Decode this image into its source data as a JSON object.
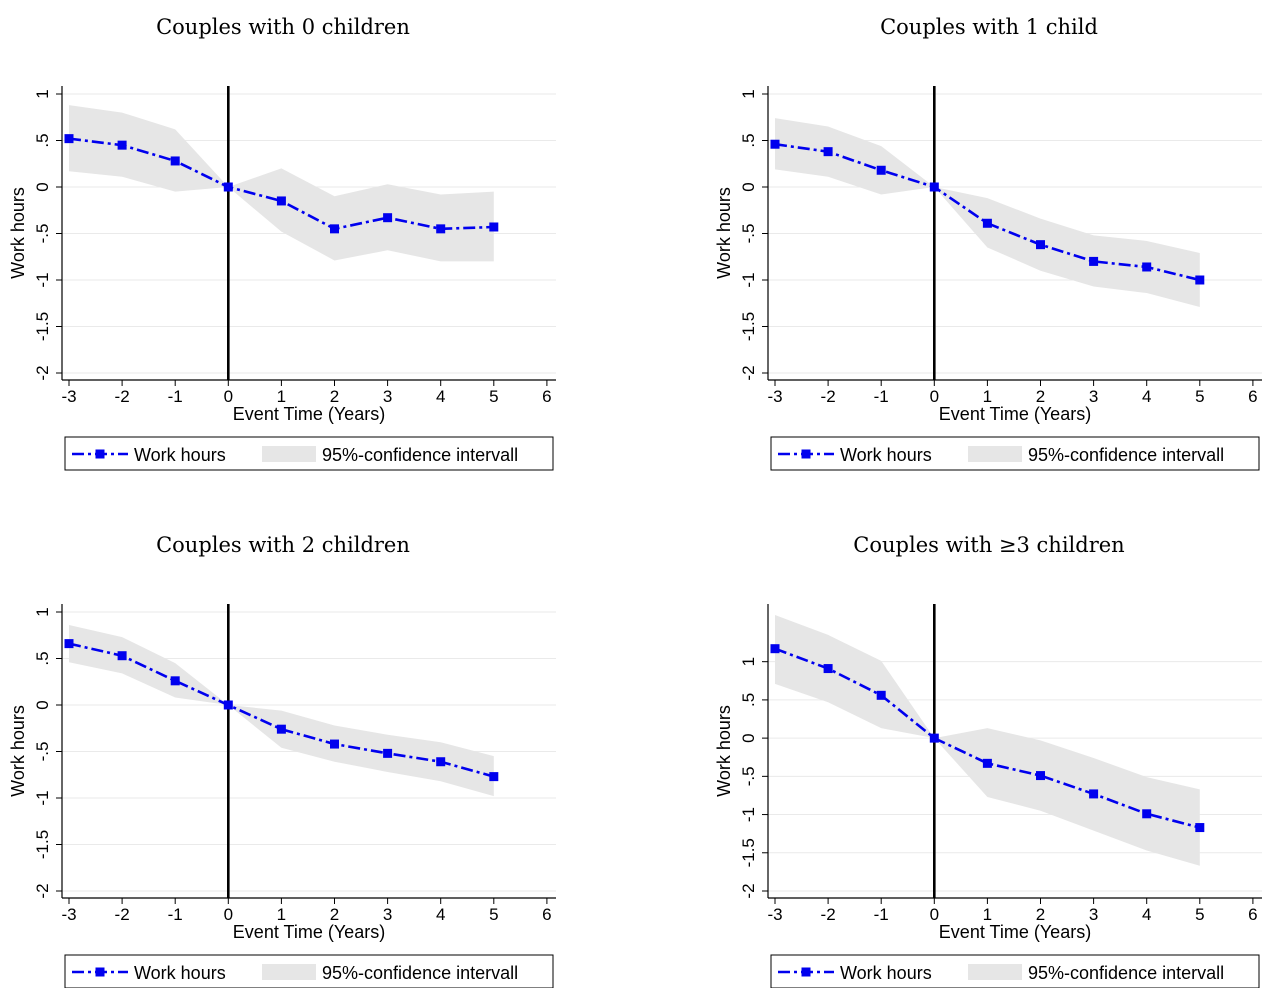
{
  "figure": {
    "legend_labels": {
      "series": "Work hours",
      "band": "95%-confidence intervall"
    }
  },
  "colors": {
    "series": "#0000ee",
    "band": "#e6e6e6",
    "grid": "#eaeaea",
    "event_line": "#000000"
  },
  "chart_data": [
    {
      "type": "line",
      "title": "Couples with 0 children",
      "xlabel": "Event Time (Years)",
      "ylabel": "Work hours",
      "xlim": [
        -3,
        6
      ],
      "ylim": [
        -2,
        1
      ],
      "xticks": [
        -3,
        -2,
        -1,
        0,
        1,
        2,
        3,
        4,
        5,
        6
      ],
      "yticks": [
        -2,
        -1.5,
        -1,
        -0.5,
        0,
        0.5,
        1
      ],
      "ytick_labels": [
        "-2",
        "-1.5",
        "-1",
        "-.5",
        "0",
        ".5",
        "1"
      ],
      "vline_x": 0,
      "legend_position": "bottom",
      "series": [
        {
          "name": "Work hours",
          "x": [
            -3,
            -2,
            -1,
            0,
            1,
            2,
            3,
            4,
            5
          ],
          "values": [
            0.52,
            0.45,
            0.28,
            0.0,
            -0.15,
            -0.45,
            -0.33,
            -0.45,
            -0.43
          ],
          "ci_low": [
            0.17,
            0.11,
            -0.05,
            0.0,
            -0.48,
            -0.79,
            -0.68,
            -0.8,
            -0.8
          ],
          "ci_high": [
            0.88,
            0.8,
            0.62,
            0.0,
            0.2,
            -0.1,
            0.03,
            -0.08,
            -0.05
          ]
        }
      ]
    },
    {
      "type": "line",
      "title": "Couples with 1 child",
      "xlabel": "Event Time (Years)",
      "ylabel": "Work hours",
      "xlim": [
        -3,
        6
      ],
      "ylim": [
        -2,
        1
      ],
      "xticks": [
        -3,
        -2,
        -1,
        0,
        1,
        2,
        3,
        4,
        5,
        6
      ],
      "yticks": [
        -2,
        -1.5,
        -1,
        -0.5,
        0,
        0.5,
        1
      ],
      "ytick_labels": [
        "-2",
        "-1.5",
        "-1",
        "-.5",
        "0",
        ".5",
        "1"
      ],
      "vline_x": 0,
      "legend_position": "bottom",
      "series": [
        {
          "name": "Work hours",
          "x": [
            -3,
            -2,
            -1,
            0,
            1,
            2,
            3,
            4,
            5
          ],
          "values": [
            0.46,
            0.38,
            0.18,
            0.0,
            -0.39,
            -0.62,
            -0.8,
            -0.86,
            -1.0
          ],
          "ci_low": [
            0.19,
            0.11,
            -0.08,
            0.0,
            -0.65,
            -0.9,
            -1.07,
            -1.14,
            -1.29
          ],
          "ci_high": [
            0.74,
            0.65,
            0.44,
            0.0,
            -0.12,
            -0.34,
            -0.52,
            -0.58,
            -0.71
          ]
        }
      ]
    },
    {
      "type": "line",
      "title": "Couples with 2 children",
      "xlabel": "Event Time (Years)",
      "ylabel": "Work hours",
      "xlim": [
        -3,
        6
      ],
      "ylim": [
        -2,
        1
      ],
      "xticks": [
        -3,
        -2,
        -1,
        0,
        1,
        2,
        3,
        4,
        5,
        6
      ],
      "yticks": [
        -2,
        -1.5,
        -1,
        -0.5,
        0,
        0.5,
        1
      ],
      "ytick_labels": [
        "-2",
        "-1.5",
        "-1",
        "-.5",
        "0",
        ".5",
        "1"
      ],
      "vline_x": 0,
      "legend_position": "bottom",
      "series": [
        {
          "name": "Work hours",
          "x": [
            -3,
            -2,
            -1,
            0,
            1,
            2,
            3,
            4,
            5
          ],
          "values": [
            0.66,
            0.53,
            0.26,
            0.0,
            -0.26,
            -0.42,
            -0.52,
            -0.61,
            -0.77
          ],
          "ci_low": [
            0.46,
            0.34,
            0.08,
            0.0,
            -0.46,
            -0.61,
            -0.72,
            -0.82,
            -0.98
          ],
          "ci_high": [
            0.86,
            0.73,
            0.45,
            0.0,
            -0.06,
            -0.22,
            -0.32,
            -0.4,
            -0.55
          ]
        }
      ]
    },
    {
      "type": "line",
      "title": "Couples with ≥3 children",
      "xlabel": "Event Time (Years)",
      "ylabel": "Work hours",
      "xlim": [
        -3,
        6
      ],
      "ylim": [
        -2,
        1.65
      ],
      "xticks": [
        -3,
        -2,
        -1,
        0,
        1,
        2,
        3,
        4,
        5,
        6
      ],
      "yticks": [
        -2,
        -1.5,
        -1,
        -0.5,
        0,
        0.5,
        1
      ],
      "ytick_labels": [
        "-2",
        "-1.5",
        "-1",
        "-.5",
        "0",
        ".5",
        "1"
      ],
      "vline_x": 0,
      "legend_position": "bottom",
      "series": [
        {
          "name": "Work hours",
          "x": [
            -3,
            -2,
            -1,
            0,
            1,
            2,
            3,
            4,
            5
          ],
          "values": [
            1.17,
            0.91,
            0.56,
            0.0,
            -0.33,
            -0.49,
            -0.73,
            -0.99,
            -1.17
          ],
          "ci_low": [
            0.71,
            0.47,
            0.13,
            0.0,
            -0.77,
            -0.95,
            -1.21,
            -1.47,
            -1.67
          ],
          "ci_high": [
            1.61,
            1.35,
            1.01,
            0.0,
            0.13,
            -0.03,
            -0.26,
            -0.51,
            -0.67
          ]
        }
      ]
    }
  ]
}
